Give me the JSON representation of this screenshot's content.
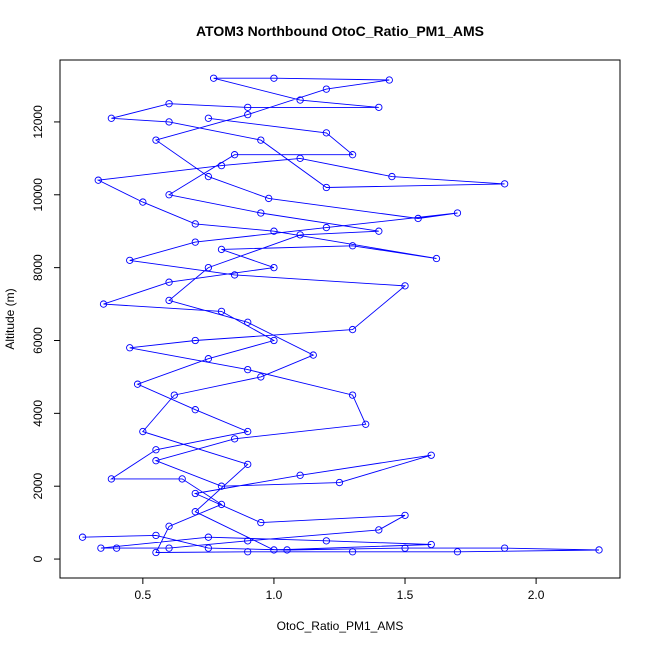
{
  "chart_data": {
    "type": "line",
    "title": "ATOM3 Northbound OtoC_Ratio_PM1_AMS",
    "x_label": "OtoC_Ratio_PM1_AMS",
    "y_label": "Altitude (m)",
    "color": "#0000ff",
    "markers": true,
    "x": [
      0.27,
      0.55,
      0.75,
      1.05,
      1.5,
      1.88,
      2.24,
      1.7,
      1.3,
      0.9,
      0.55,
      0.6,
      0.8,
      0.65,
      0.38,
      0.55,
      0.9,
      0.7,
      0.48,
      0.75,
      1.0,
      0.8,
      0.35,
      0.6,
      1.0,
      0.8,
      1.3,
      1.62,
      1.0,
      0.7,
      0.5,
      0.33,
      0.8,
      1.1,
      1.45,
      1.88,
      1.2,
      0.95,
      0.6,
      0.38,
      0.6,
      0.9,
      1.4,
      1.1,
      0.77,
      1.0,
      1.44,
      1.2,
      0.9,
      0.55,
      0.75,
      0.98,
      1.55,
      1.7,
      1.2,
      0.7,
      0.45,
      0.85,
      1.5,
      1.3,
      0.7,
      0.45,
      0.9,
      1.3,
      1.35,
      0.85,
      0.55,
      0.8,
      1.25,
      1.6,
      1.1,
      0.7,
      0.95,
      1.5,
      1.4,
      0.9,
      0.6,
      0.4,
      0.34,
      0.75,
      1.2,
      1.6,
      1.0,
      0.7,
      0.9,
      0.5,
      0.62,
      0.95,
      1.15,
      0.9,
      0.6,
      0.75,
      1.1,
      1.4,
      0.95,
      0.6,
      0.85,
      1.3,
      1.2,
      0.75
    ],
    "values": [
      600,
      650,
      300,
      250,
      300,
      300,
      250,
      200,
      200,
      200,
      180,
      900,
      1500,
      2200,
      2200,
      3000,
      3500,
      4100,
      4800,
      5500,
      6000,
      6800,
      7000,
      7600,
      8000,
      8500,
      8600,
      8250,
      9000,
      9200,
      9800,
      10400,
      10800,
      11000,
      10500,
      10300,
      10200,
      11500,
      12000,
      12100,
      12500,
      12400,
      12400,
      12600,
      13200,
      13200,
      13150,
      12900,
      12200,
      11500,
      10500,
      9900,
      9350,
      9500,
      9100,
      8700,
      8200,
      7800,
      7500,
      6300,
      6000,
      5800,
      5200,
      4500,
      3700,
      3300,
      2700,
      2000,
      2100,
      2850,
      2300,
      1800,
      1000,
      1200,
      800,
      500,
      300,
      300,
      300,
      600,
      500,
      400,
      250,
      1300,
      2600,
      3500,
      4500,
      5000,
      5600,
      6500,
      7100,
      8000,
      8900,
      9000,
      9500,
      10000,
      11100,
      11100,
      11700,
      12100
    ],
    "xlim": [
      0.184,
      2.32
    ],
    "ylim": [
      -520,
      13700
    ],
    "xticks": [
      0.5,
      {
        "value": 1,
        "label": "1.0"
      },
      1.5,
      {
        "value": 2,
        "label": "2.0"
      }
    ],
    "yticks": [
      0,
      2000,
      4000,
      6000,
      8000,
      10000,
      12000
    ]
  }
}
